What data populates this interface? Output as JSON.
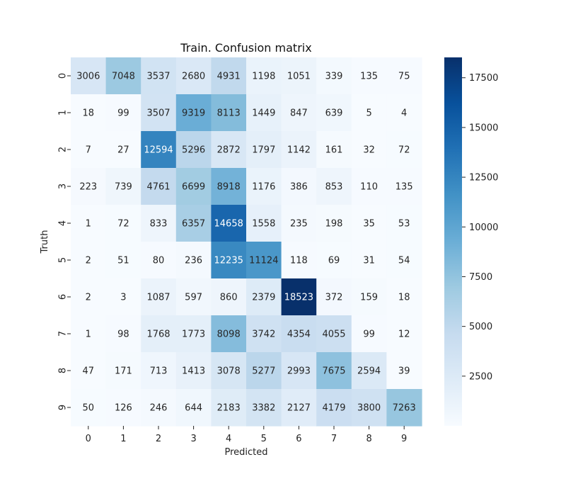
{
  "chart_data": {
    "type": "heatmap",
    "title": "Train. Confusion matrix",
    "xlabel": "Predicted",
    "ylabel": "Truth",
    "x_categories": [
      "0",
      "1",
      "2",
      "3",
      "4",
      "5",
      "6",
      "7",
      "8",
      "9"
    ],
    "y_categories": [
      "0",
      "1",
      "2",
      "3",
      "4",
      "5",
      "6",
      "7",
      "8",
      "9"
    ],
    "values": [
      [
        3006,
        7048,
        3537,
        2680,
        4931,
        1198,
        1051,
        339,
        135,
        75
      ],
      [
        18,
        99,
        3507,
        9319,
        8113,
        1449,
        847,
        639,
        5,
        4
      ],
      [
        7,
        27,
        12594,
        5296,
        2872,
        1797,
        1142,
        161,
        32,
        72
      ],
      [
        223,
        739,
        4761,
        6699,
        8918,
        1176,
        386,
        853,
        110,
        135
      ],
      [
        1,
        72,
        833,
        6357,
        14658,
        1558,
        235,
        198,
        35,
        53
      ],
      [
        2,
        51,
        80,
        236,
        12235,
        11124,
        118,
        69,
        31,
        54
      ],
      [
        2,
        3,
        1087,
        597,
        860,
        2379,
        18523,
        372,
        159,
        18
      ],
      [
        1,
        98,
        1768,
        1773,
        8098,
        3742,
        4354,
        4055,
        99,
        12
      ],
      [
        47,
        171,
        713,
        1413,
        3078,
        5277,
        2993,
        7675,
        2594,
        39
      ],
      [
        50,
        126,
        246,
        644,
        2183,
        3382,
        2127,
        4179,
        3800,
        7263
      ]
    ],
    "colorbar": {
      "colormap": "Blues",
      "min": 1,
      "max": 18523,
      "ticks": [
        "2500",
        "5000",
        "7500",
        "10000",
        "12500",
        "15000",
        "17500"
      ],
      "tick_values": [
        2500,
        5000,
        7500,
        10000,
        12500,
        15000,
        17500
      ]
    }
  }
}
